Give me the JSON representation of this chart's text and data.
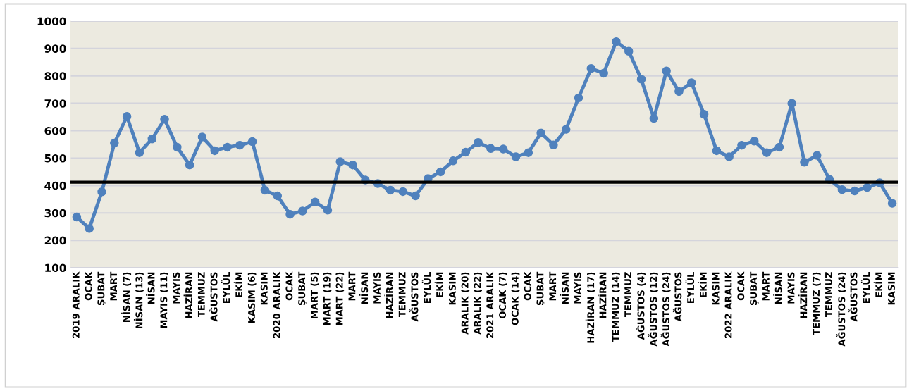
{
  "chart_data": {
    "type": "line",
    "categories": [
      "2019 ARALIK",
      "OCAK",
      "ŞUBAT",
      "MART",
      "NİSAN (7)",
      "NİSAN (13)",
      "NİSAN",
      "MAYIS (11)",
      "MAYIS",
      "HAZİRAN",
      "TEMMUZ",
      "AĞUSTOS",
      "EYLÜL",
      "EKİM",
      "KASIM (6)",
      "KASIM",
      "2020 ARALIK",
      "OCAK",
      "ŞUBAT",
      "MART (5)",
      "MART (19)",
      "MART (22)",
      "MART",
      "NİSAN",
      "MAYIS",
      "HAZİRAN",
      "TEMMUZ",
      "AĞUSTOS",
      "EYLÜL",
      "EKİM",
      "KASIM",
      "ARALIK (20)",
      "ARALIK (22)",
      "2021 ARALIK",
      "OCAK (7)",
      "OCAK (14)",
      "OCAK",
      "ŞUBAT",
      "MART",
      "NİSAN",
      "MAYIS",
      "HAZİRAN (17)",
      "HAZİRAN",
      "TEMMUZ (14)",
      "TEMMUZ",
      "AĞUSTOS (4)",
      "AĞUSTOS (12)",
      "AĞUSTOS (24)",
      "AĞUSTOS",
      "EYLÜL",
      "EKİM",
      "KASIM",
      "2022 ARALIK",
      "OCAK",
      "ŞUBAT",
      "MART",
      "NİSAN",
      "MAYIS",
      "HAZİRAN",
      "TEMMUZ (7)",
      "TEMMUZ",
      "AĞUSTOS (24)",
      "AĞUSTOS",
      "EYLÜL",
      "EKİM",
      "KASIM"
    ],
    "series": [
      {
        "color": "#4f81bd",
        "values": [
          285,
          243,
          377,
          555,
          652,
          520,
          570,
          642,
          540,
          475,
          577,
          527,
          540,
          547,
          560,
          383,
          362,
          295,
          307,
          340,
          310,
          487,
          475,
          420,
          407,
          383,
          378,
          362,
          425,
          450,
          490,
          522,
          557,
          535,
          533,
          505,
          520,
          592,
          548,
          605,
          720,
          827,
          810,
          925,
          890,
          788,
          645,
          818,
          743,
          775,
          660,
          527,
          505,
          547,
          562,
          520,
          540,
          700,
          485,
          510,
          422,
          385,
          380,
          393,
          410,
          335
        ]
      }
    ],
    "ylim": [
      100,
      1000
    ],
    "yticks": [
      100,
      200,
      300,
      400,
      500,
      600,
      700,
      800,
      900,
      1000
    ],
    "grid": "y",
    "marker": "circle",
    "line_style": "solid",
    "ref_lines": [
      {
        "axis": "y",
        "value": 412,
        "color": "#000000"
      }
    ]
  }
}
